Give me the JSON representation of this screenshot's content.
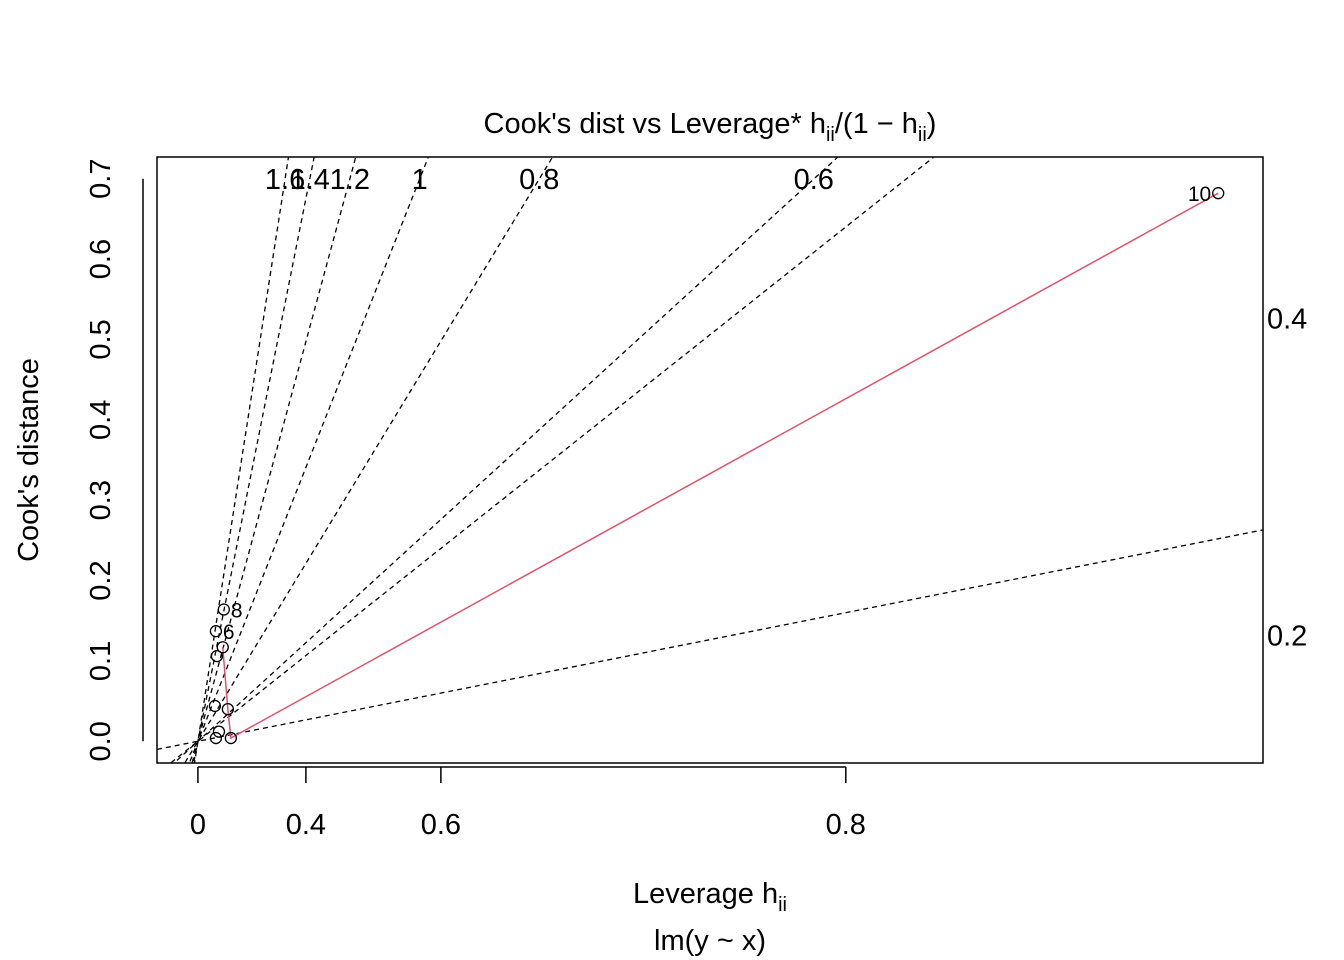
{
  "chart_data": {
    "type": "scatter",
    "title": [
      "Cook's dist vs Leverage* h",
      "ii",
      "/(1 − h",
      "ii",
      ")"
    ],
    "xlabel": [
      "Leverage  h",
      "ii"
    ],
    "subtitle": "lm(y ~ x)",
    "ylabel": "Cook's distance",
    "xscale": "h/(1-h)",
    "xlim": [
      -0.338,
      0.868
    ],
    "ylim": [
      -0.027,
      0.727
    ],
    "xticks": [
      0,
      0.4,
      0.6,
      0.8
    ],
    "yticks": [
      {
        "value": 0,
        "label": "0.0"
      },
      0.1,
      0.2,
      0.3,
      0.4,
      0.5,
      0.6,
      0.7
    ],
    "x": [
      0.1,
      0.115,
      0.095,
      0.156,
      0.105,
      0.1,
      0.133,
      0.138,
      0.169,
      0.863
    ],
    "values": [
      0.004,
      0.012,
      0.044,
      0.04,
      0.106,
      0.137,
      0.117,
      0.164,
      0.004,
      0.682
    ],
    "point_labels": [
      null,
      null,
      null,
      null,
      null,
      "6",
      null,
      "8",
      null,
      "10"
    ],
    "color": "#000000",
    "smooth": {
      "color": "#df536b",
      "x": [
        0.133,
        0.156,
        0.169,
        0.863
      ],
      "values": [
        0.117,
        0.04,
        0.004,
        0.682
      ]
    },
    "contours": [
      {
        "label": "1.6",
        "slope": 1.3,
        "label_position": "top"
      },
      {
        "label": "1.4",
        "slope": 1.013,
        "label_position": "top"
      },
      {
        "label": "1.2",
        "slope": 0.746,
        "label_position": "top"
      },
      {
        "label": "1",
        "slope": 0.511,
        "label_position": "top"
      },
      {
        "label": "0.8",
        "slope": 0.332,
        "label_position": "top"
      },
      {
        "label": "0.6",
        "slope": 0.184,
        "label_position": "top"
      },
      {
        "label": "0.4",
        "slope": 0.16,
        "label_position": "right"
      },
      {
        "label": "0.2",
        "slope": 0.04,
        "label_position": "right"
      }
    ]
  }
}
